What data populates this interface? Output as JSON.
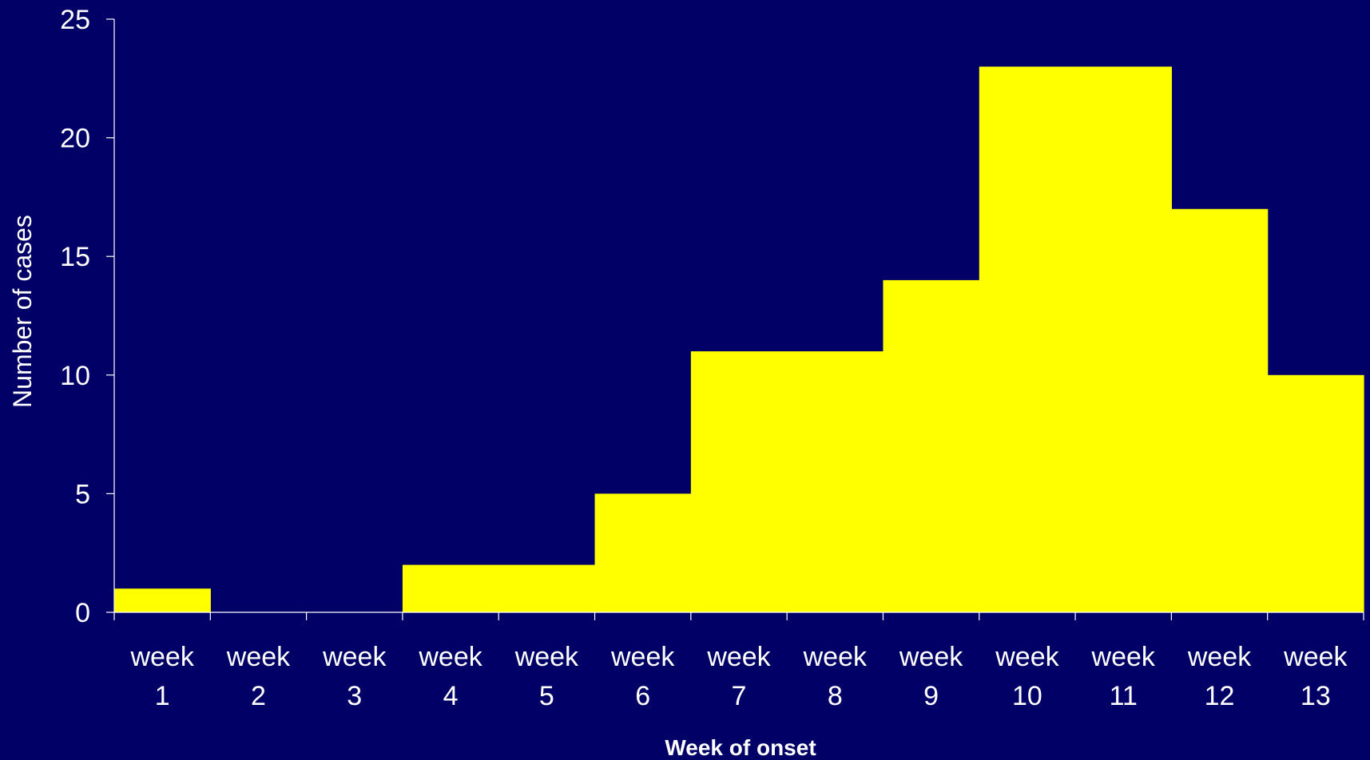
{
  "chart_data": {
    "type": "bar",
    "categories": [
      "week 1",
      "week 2",
      "week 3",
      "week 4",
      "week 5",
      "week 6",
      "week 7",
      "week 8",
      "week 9",
      "week 10",
      "week 11",
      "week 12",
      "week 13"
    ],
    "category_lines": [
      [
        "week",
        "1"
      ],
      [
        "week",
        "2"
      ],
      [
        "week",
        "3"
      ],
      [
        "week",
        "4"
      ],
      [
        "week",
        "5"
      ],
      [
        "week",
        "6"
      ],
      [
        "week",
        "7"
      ],
      [
        "week",
        "8"
      ],
      [
        "week",
        "9"
      ],
      [
        "week",
        "10"
      ],
      [
        "week",
        "11"
      ],
      [
        "week",
        "12"
      ],
      [
        "week",
        "13"
      ]
    ],
    "values": [
      1,
      0,
      0,
      2,
      2,
      5,
      11,
      11,
      14,
      23,
      23,
      17,
      10
    ],
    "xlabel": "Week of onset",
    "ylabel": "Number of cases",
    "ylim": [
      0,
      25
    ],
    "yticks": [
      0,
      5,
      10,
      15,
      20,
      25
    ],
    "bar_gap": "none",
    "grid": false,
    "colors": {
      "background": "#000066",
      "bar": "#ffff00",
      "axis": "#ffffff",
      "text": "#ffffff"
    }
  }
}
